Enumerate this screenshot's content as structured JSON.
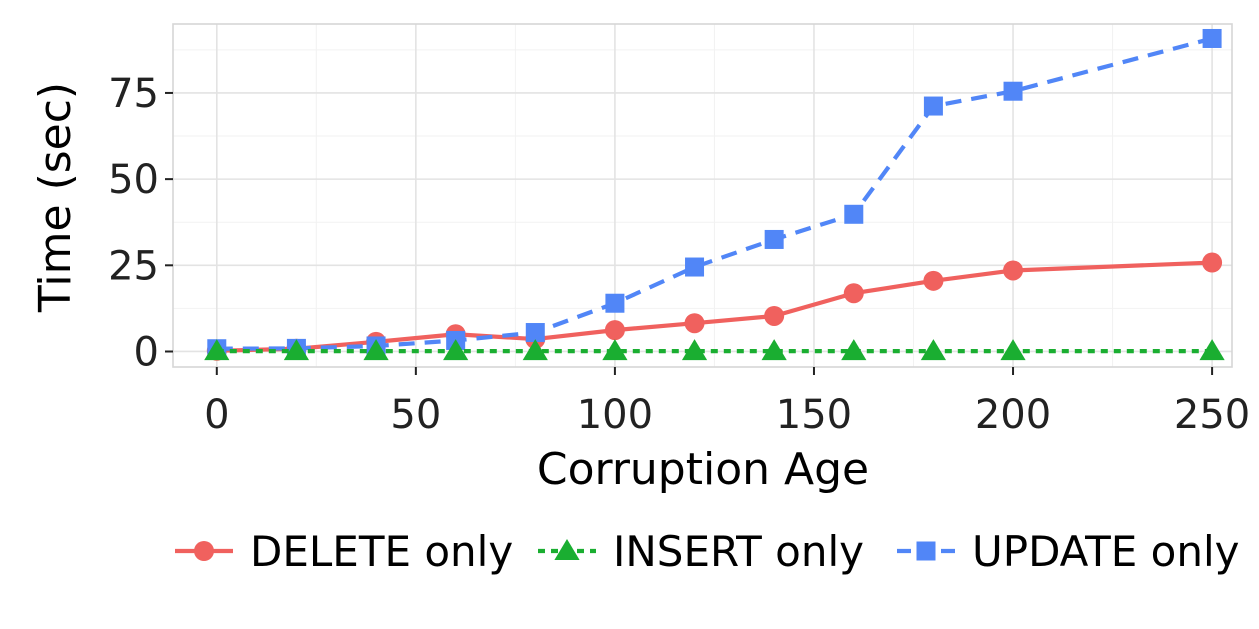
{
  "chart_data": {
    "type": "line",
    "xlabel": "Corruption Age",
    "ylabel": "Time (sec)",
    "xlim": [
      -11,
      255
    ],
    "ylim": [
      -4.5,
      95
    ],
    "x_ticks": [
      0,
      50,
      100,
      150,
      200,
      250
    ],
    "y_ticks": [
      0,
      25,
      50,
      75
    ],
    "grid": true,
    "legend_position": "bottom",
    "series": [
      {
        "name": "DELETE only",
        "color": "#F0615E",
        "marker": "circle",
        "line": "solid",
        "x": [
          0,
          20,
          40,
          60,
          80,
          100,
          120,
          140,
          160,
          180,
          200,
          250
        ],
        "y": [
          0.2,
          0.8,
          2.8,
          5.0,
          3.6,
          6.2,
          8.2,
          10.3,
          16.9,
          20.5,
          23.5,
          25.8
        ]
      },
      {
        "name": "INSERT only",
        "color": "#1AAE31",
        "marker": "triangle",
        "line": "dotted",
        "x": [
          0,
          20,
          40,
          60,
          80,
          100,
          120,
          140,
          160,
          180,
          200,
          250
        ],
        "y": [
          0.1,
          0.1,
          0.1,
          0.1,
          0.1,
          0.1,
          0.1,
          0.1,
          0.1,
          0.1,
          0.1,
          0.1
        ]
      },
      {
        "name": "UPDATE only",
        "color": "#5186F7",
        "marker": "square",
        "line": "dashed",
        "x": [
          0,
          20,
          40,
          60,
          80,
          100,
          120,
          140,
          160,
          180,
          200,
          250
        ],
        "y": [
          0.8,
          0.9,
          1.6,
          3.2,
          5.5,
          14.0,
          24.5,
          32.5,
          39.8,
          71.2,
          75.5,
          90.8
        ]
      }
    ]
  }
}
